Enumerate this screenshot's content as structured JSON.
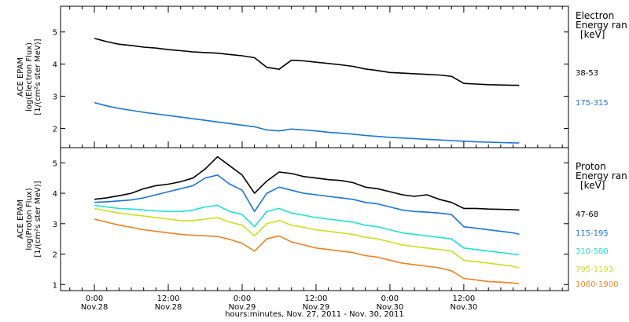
{
  "chart_data": [
    {
      "type": "line",
      "panel": "electron",
      "ylabel_lines": [
        "ACE EPAM",
        "log(Electron Flux)",
        "[1/(cm²s ster MeV)]"
      ],
      "ylim": [
        1.4,
        5.8
      ],
      "yticks": [
        2,
        3,
        4,
        5
      ],
      "legend_title": [
        "Electron",
        "Energy ran",
        "[keV]"
      ],
      "x": [
        0,
        2,
        4,
        6,
        8,
        10,
        12,
        14,
        16,
        18,
        20,
        22,
        24,
        26,
        28,
        30,
        32,
        34,
        36,
        38,
        40,
        42,
        44,
        46,
        48,
        50,
        52,
        54,
        56,
        58,
        60,
        62,
        64,
        66,
        68,
        69
      ],
      "series": [
        {
          "name": "38-53",
          "color": "#000000",
          "values": [
            4.8,
            4.7,
            4.62,
            4.58,
            4.53,
            4.5,
            4.45,
            4.42,
            4.38,
            4.36,
            4.34,
            4.3,
            4.26,
            4.2,
            3.9,
            3.84,
            4.12,
            4.1,
            4.06,
            4.02,
            3.98,
            3.93,
            3.85,
            3.8,
            3.74,
            3.72,
            3.7,
            3.68,
            3.66,
            3.62,
            3.4,
            3.38,
            3.36,
            3.35,
            3.34,
            3.34
          ]
        },
        {
          "name": "175-315",
          "color": "#1a73d6",
          "values": [
            2.8,
            2.7,
            2.62,
            2.56,
            2.5,
            2.45,
            2.4,
            2.35,
            2.3,
            2.25,
            2.2,
            2.15,
            2.1,
            2.05,
            1.95,
            1.92,
            1.98,
            1.95,
            1.92,
            1.88,
            1.85,
            1.82,
            1.78,
            1.75,
            1.72,
            1.7,
            1.68,
            1.66,
            1.64,
            1.62,
            1.6,
            1.58,
            1.57,
            1.56,
            1.55,
            1.55
          ]
        }
      ]
    },
    {
      "type": "line",
      "panel": "proton",
      "ylabel_lines": [
        "ACE EPAM",
        "log(Proton Flux)",
        "[1/(cm²s ster MeV)]"
      ],
      "ylim": [
        0.8,
        5.5
      ],
      "yticks": [
        1,
        2,
        3,
        4,
        5
      ],
      "legend_title": [
        "Proton",
        "Energy ran",
        "[keV]"
      ],
      "x": [
        0,
        2,
        4,
        6,
        8,
        10,
        12,
        14,
        16,
        18,
        20,
        22,
        24,
        26,
        28,
        30,
        32,
        34,
        36,
        38,
        40,
        42,
        44,
        46,
        48,
        50,
        52,
        54,
        56,
        58,
        60,
        62,
        64,
        66,
        68,
        69
      ],
      "series": [
        {
          "name": "47-68",
          "color": "#000000",
          "values": [
            3.8,
            3.85,
            3.92,
            4.0,
            4.15,
            4.25,
            4.3,
            4.38,
            4.5,
            4.8,
            5.2,
            4.9,
            4.6,
            4.0,
            4.4,
            4.7,
            4.65,
            4.55,
            4.5,
            4.45,
            4.42,
            4.35,
            4.2,
            4.15,
            4.05,
            3.95,
            3.9,
            3.95,
            3.8,
            3.7,
            3.5,
            3.5,
            3.48,
            3.47,
            3.46,
            3.45
          ]
        },
        {
          "name": "115-195",
          "color": "#1a73d6",
          "values": [
            3.7,
            3.72,
            3.75,
            3.78,
            3.85,
            3.95,
            4.05,
            4.15,
            4.25,
            4.5,
            4.6,
            4.3,
            4.1,
            3.4,
            4.0,
            4.2,
            4.1,
            4.0,
            3.95,
            3.9,
            3.85,
            3.8,
            3.7,
            3.65,
            3.55,
            3.45,
            3.4,
            3.38,
            3.35,
            3.3,
            2.9,
            2.85,
            2.8,
            2.75,
            2.7,
            2.65
          ]
        },
        {
          "name": "310-580",
          "color": "#20e0d0",
          "values": [
            3.6,
            3.55,
            3.5,
            3.48,
            3.45,
            3.42,
            3.4,
            3.4,
            3.45,
            3.55,
            3.6,
            3.4,
            3.3,
            2.9,
            3.4,
            3.5,
            3.35,
            3.28,
            3.2,
            3.15,
            3.1,
            3.05,
            2.95,
            2.9,
            2.8,
            2.7,
            2.65,
            2.6,
            2.55,
            2.5,
            2.2,
            2.15,
            2.1,
            2.05,
            2.0,
            1.98
          ]
        },
        {
          "name": "795-1193",
          "color": "#c8e020",
          "values": [
            3.5,
            3.42,
            3.35,
            3.3,
            3.25,
            3.2,
            3.15,
            3.1,
            3.1,
            3.15,
            3.2,
            3.05,
            2.95,
            2.6,
            3.0,
            3.1,
            2.95,
            2.88,
            2.8,
            2.75,
            2.7,
            2.65,
            2.55,
            2.5,
            2.4,
            2.3,
            2.25,
            2.2,
            2.15,
            2.1,
            1.8,
            1.75,
            1.7,
            1.65,
            1.6,
            1.55
          ]
        },
        {
          "name": "1060-1900",
          "color": "#f08020",
          "values": [
            3.15,
            3.05,
            2.95,
            2.88,
            2.8,
            2.75,
            2.7,
            2.65,
            2.62,
            2.6,
            2.58,
            2.48,
            2.35,
            2.1,
            2.5,
            2.6,
            2.4,
            2.3,
            2.2,
            2.15,
            2.1,
            2.05,
            1.95,
            1.9,
            1.8,
            1.7,
            1.65,
            1.6,
            1.55,
            1.45,
            1.2,
            1.15,
            1.1,
            1.08,
            1.05,
            1.02
          ]
        }
      ]
    }
  ],
  "x_axis": {
    "ticks": [
      {
        "t": 0,
        "time": "0:00",
        "date": "Nov.28"
      },
      {
        "t": 12,
        "time": "12:00",
        "date": "Nov.28"
      },
      {
        "t": 24,
        "time": "0:00",
        "date": "Nov.29"
      },
      {
        "t": 36,
        "time": "12:00",
        "date": "Nov.29"
      },
      {
        "t": 48,
        "time": "0:00",
        "date": "Nov.30"
      },
      {
        "t": 60,
        "time": "12:00",
        "date": "Nov.30"
      }
    ],
    "range_hours": [
      -5.5,
      77
    ],
    "minor_step_hours": 2,
    "title": "hours:minutes, Nov. 27, 2011 - Nov. 30, 2011"
  }
}
